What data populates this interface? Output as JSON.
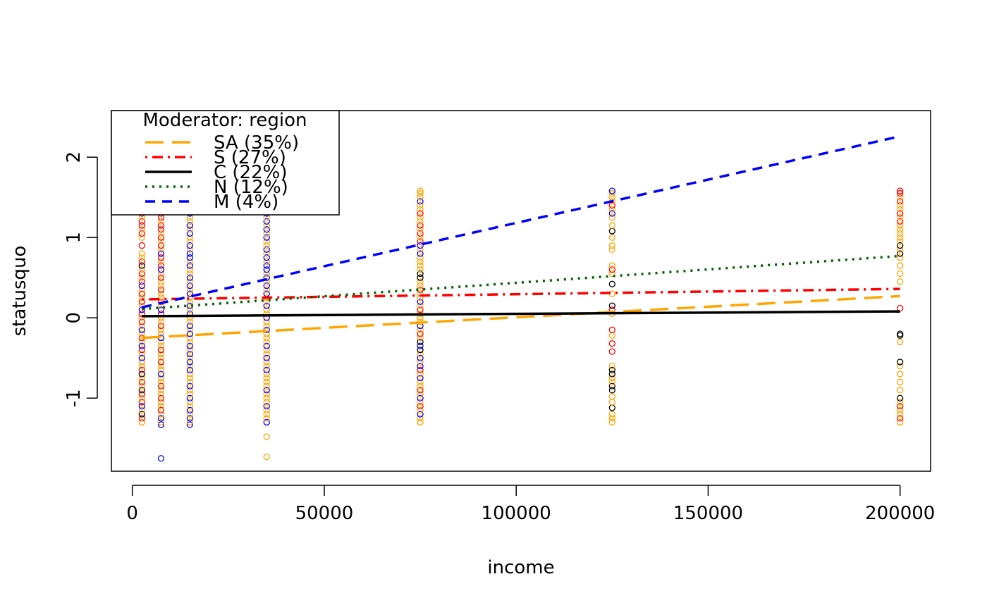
{
  "chart_data": {
    "type": "scatter",
    "xlabel": "income",
    "ylabel": "statusquo",
    "xlim": [
      -5450,
      207950
    ],
    "ylim": [
      -1.91,
      2.58
    ],
    "x_ticks": [
      0,
      50000,
      100000,
      150000,
      200000
    ],
    "x_tick_labels": [
      "0",
      "50000",
      "100000",
      "150000",
      "200000"
    ],
    "y_ticks": [
      -1,
      0,
      1,
      2
    ],
    "y_tick_labels": [
      "-1",
      "0",
      "1",
      "2"
    ],
    "grid": false,
    "legend": {
      "title": "Moderator: region",
      "position": "top-left"
    },
    "income_levels": [
      2500,
      7500,
      15000,
      35000,
      75000,
      125000,
      200000
    ],
    "series": [
      {
        "name": "SA (35%)",
        "color": "#FFA500",
        "dash": "longdash",
        "fit_x": [
          2500,
          200000
        ],
        "fit_y": [
          -0.25,
          0.27
        ]
      },
      {
        "name": "S (27%)",
        "color": "#FF0000",
        "dash": "dotdash",
        "fit_x": [
          2500,
          200000
        ],
        "fit_y": [
          0.23,
          0.36
        ]
      },
      {
        "name": "C (22%)",
        "color": "#000000",
        "dash": "solid",
        "fit_x": [
          2500,
          200000
        ],
        "fit_y": [
          0.02,
          0.08
        ]
      },
      {
        "name": "N (12%)",
        "color": "#006400",
        "dash": "dotted",
        "fit_x": [
          2500,
          200000
        ],
        "fit_y": [
          0.11,
          0.77
        ]
      },
      {
        "name": "M (4%)",
        "color": "#0000FF",
        "dash": "dashed",
        "fit_x": [
          2500,
          200000
        ],
        "fit_y": [
          0.13,
          2.26
        ]
      }
    ],
    "points": [
      {
        "x": 2500,
        "y": [
          -1.3,
          -1.25,
          -1.2,
          -1.15,
          -1.1,
          -1.05,
          -1.0,
          -0.95,
          -0.9,
          -0.85,
          -0.8,
          -0.75,
          -0.7,
          -0.65,
          -0.6,
          -0.55,
          -0.5,
          -0.45,
          -0.4,
          -0.35,
          -0.3,
          -0.25,
          -0.2,
          -0.15,
          -0.1,
          -0.05,
          0.0,
          0.05,
          0.1,
          0.15,
          0.2,
          0.25,
          0.3,
          0.35,
          0.4,
          0.45,
          0.5,
          0.55,
          0.6,
          0.65,
          0.7,
          0.75,
          0.8,
          0.9,
          1.0,
          1.05,
          1.1,
          1.15,
          1.2,
          1.25,
          1.3,
          1.35,
          1.4,
          1.45,
          1.5,
          1.55,
          1.58
        ],
        "colors": [
          "#FFA500",
          "#FF0000",
          "#000000",
          "#FFA500",
          "#0000FF",
          "#FF0000",
          "#FFA500",
          "#FF0000",
          "#000000",
          "#FFA500",
          "#FF0000",
          "#FFA500",
          "#000000",
          "#FF0000",
          "#FFA500",
          "#FFA500",
          "#0000FF",
          "#FFA500",
          "#FF0000",
          "#0000FF",
          "#FFA500",
          "#FF0000",
          "#FFA500",
          "#0000FF",
          "#FFA500",
          "#FF0000",
          "#FFA500",
          "#FF0000",
          "#0000FF",
          "#FFA500",
          "#FF0000",
          "#FFA500",
          "#FF0000",
          "#FFA500",
          "#0000FF",
          "#FF0000",
          "#FFA500",
          "#FF0000",
          "#FFA500",
          "#000000",
          "#FF0000",
          "#FFA500",
          "#FFA500",
          "#FF0000",
          "#FFA500",
          "#FF0000",
          "#FFA500",
          "#FF0000",
          "#FF0000",
          "#FFA500",
          "#FF0000",
          "#FFA500",
          "#FF0000",
          "#FFA500",
          "#FF0000",
          "#FFA500",
          "#FF0000"
        ]
      },
      {
        "x": 7500,
        "y": [
          -1.75,
          -1.33,
          -1.3,
          -1.25,
          -1.2,
          -1.15,
          -1.1,
          -1.05,
          -1.0,
          -0.95,
          -0.9,
          -0.85,
          -0.8,
          -0.75,
          -0.7,
          -0.65,
          -0.6,
          -0.55,
          -0.5,
          -0.45,
          -0.4,
          -0.35,
          -0.3,
          -0.25,
          -0.2,
          -0.15,
          -0.1,
          -0.05,
          0.0,
          0.05,
          0.1,
          0.15,
          0.2,
          0.25,
          0.3,
          0.35,
          0.4,
          0.45,
          0.5,
          0.55,
          0.6,
          0.65,
          0.7,
          0.75,
          0.8,
          0.85,
          0.9,
          0.95,
          1.0,
          1.05,
          1.1,
          1.15,
          1.2,
          1.25,
          1.3,
          1.35,
          1.4,
          1.45,
          1.5,
          1.55,
          1.58
        ],
        "colors": [
          "#0000FF",
          "#0000FF",
          "#FFA500",
          "#0000FF",
          "#FFA500",
          "#FF0000",
          "#FFA500",
          "#FFA500",
          "#FF0000",
          "#FFA500",
          "#FFA500",
          "#FF0000",
          "#FFA500",
          "#FFA500",
          "#0000FF",
          "#FFA500",
          "#FFA500",
          "#FF0000",
          "#FFA500",
          "#FFA500",
          "#FF0000",
          "#FFA500",
          "#FFA500",
          "#0000FF",
          "#FFA500",
          "#FFA500",
          "#FF0000",
          "#FFA500",
          "#FFA500",
          "#FF0000",
          "#0000FF",
          "#FFA500",
          "#FF0000",
          "#FFA500",
          "#FFA500",
          "#FF0000",
          "#FFA500",
          "#FFA500",
          "#FF0000",
          "#FFA500",
          "#0000FF",
          "#FF0000",
          "#FFA500",
          "#FF0000",
          "#0000FF",
          "#FFA500",
          "#FF0000",
          "#FFA500",
          "#FF0000",
          "#FFA500",
          "#FF0000",
          "#FF0000",
          "#FFA500",
          "#FF0000",
          "#FF0000",
          "#FFA500",
          "#FF0000",
          "#FFA500",
          "#FF0000",
          "#FFA500",
          "#FF0000"
        ]
      },
      {
        "x": 15000,
        "y": [
          -1.33,
          -1.3,
          -1.25,
          -1.2,
          -1.15,
          -1.1,
          -1.05,
          -1.0,
          -0.95,
          -0.9,
          -0.85,
          -0.8,
          -0.75,
          -0.7,
          -0.65,
          -0.6,
          -0.55,
          -0.5,
          -0.45,
          -0.4,
          -0.35,
          -0.3,
          -0.25,
          -0.2,
          -0.15,
          -0.1,
          -0.05,
          0.0,
          0.05,
          0.1,
          0.15,
          0.2,
          0.25,
          0.3,
          0.35,
          0.4,
          0.45,
          0.5,
          0.55,
          0.6,
          0.65,
          0.7,
          0.75,
          0.8,
          0.85,
          0.9,
          0.95,
          1.0,
          1.05,
          1.1,
          1.15,
          1.2,
          1.25,
          1.3,
          1.35,
          1.4,
          1.45,
          1.5,
          1.55,
          1.58
        ],
        "colors": [
          "#0000FF",
          "#FFA500",
          "#0000FF",
          "#FFA500",
          "#0000FF",
          "#FFA500",
          "#FFA500",
          "#0000FF",
          "#FFA500",
          "#FFA500",
          "#0000FF",
          "#FFA500",
          "#FFA500",
          "#FFA500",
          "#0000FF",
          "#FFA500",
          "#0000FF",
          "#FFA500",
          "#0000FF",
          "#FFA500",
          "#0000FF",
          "#FFA500",
          "#FFA500",
          "#0000FF",
          "#FFA500",
          "#0000FF",
          "#FFA500",
          "#FFA500",
          "#0000FF",
          "#FFA500",
          "#0000FF",
          "#FFA500",
          "#FFA500",
          "#0000FF",
          "#FFA500",
          "#0000FF",
          "#FFA500",
          "#0000FF",
          "#FFA500",
          "#FFA500",
          "#0000FF",
          "#FFA500",
          "#0000FF",
          "#0000FF",
          "#FFA500",
          "#0000FF",
          "#FFA500",
          "#FFA500",
          "#0000FF",
          "#FFA500",
          "#0000FF",
          "#FFA500",
          "#FFA500",
          "#0000FF",
          "#FFA500",
          "#FFA500",
          "#FFA500",
          "#FFA500",
          "#FFA500",
          "#FFA500"
        ]
      },
      {
        "x": 35000,
        "y": [
          -1.73,
          -1.48,
          -1.3,
          -1.25,
          -1.2,
          -1.15,
          -1.1,
          -1.05,
          -1.0,
          -0.95,
          -0.9,
          -0.85,
          -0.8,
          -0.75,
          -0.7,
          -0.65,
          -0.6,
          -0.55,
          -0.5,
          -0.45,
          -0.4,
          -0.35,
          -0.3,
          -0.25,
          -0.2,
          -0.15,
          -0.1,
          -0.05,
          0.0,
          0.05,
          0.1,
          0.15,
          0.2,
          0.25,
          0.3,
          0.35,
          0.4,
          0.45,
          0.5,
          0.55,
          0.6,
          0.65,
          0.7,
          0.75,
          0.8,
          0.85,
          0.9,
          0.95,
          1.0,
          1.05,
          1.1,
          1.15,
          1.2,
          1.25,
          1.3,
          1.35,
          1.4,
          1.45,
          1.5,
          1.55,
          1.58
        ],
        "colors": [
          "#FFA500",
          "#FFA500",
          "#0000FF",
          "#FFA500",
          "#FFA500",
          "#FFA500",
          "#0000FF",
          "#FFA500",
          "#FFA500",
          "#FFA500",
          "#0000FF",
          "#FFA500",
          "#FFA500",
          "#FFA500",
          "#FFA500",
          "#0000FF",
          "#FFA500",
          "#FFA500",
          "#0000FF",
          "#FFA500",
          "#FFA500",
          "#0000FF",
          "#FFA500",
          "#FFA500",
          "#FFA500",
          "#0000FF",
          "#FFA500",
          "#FFA500",
          "#0000FF",
          "#FFA500",
          "#FFA500",
          "#0000FF",
          "#FFA500",
          "#FFA500",
          "#0000FF",
          "#FFA500",
          "#0000FF",
          "#FFA500",
          "#0000FF",
          "#FFA500",
          "#0000FF",
          "#0000FF",
          "#FFA500",
          "#0000FF",
          "#FFA500",
          "#0000FF",
          "#FFA500",
          "#FFA500",
          "#0000FF",
          "#FFA500",
          "#0000FF",
          "#FFA500",
          "#0000FF",
          "#FFA500",
          "#0000FF",
          "#FFA500",
          "#FFA500",
          "#FFA500",
          "#FFA500",
          "#FFA500",
          "#FFA500"
        ]
      },
      {
        "x": 75000,
        "y": [
          -1.3,
          -1.25,
          -1.2,
          -1.15,
          -1.1,
          -1.05,
          -1.0,
          -0.95,
          -0.9,
          -0.85,
          -0.8,
          -0.75,
          -0.7,
          -0.65,
          -0.6,
          -0.55,
          -0.5,
          -0.45,
          -0.4,
          -0.35,
          -0.3,
          -0.25,
          -0.2,
          -0.15,
          -0.1,
          -0.05,
          0.0,
          0.05,
          0.1,
          0.15,
          0.2,
          0.25,
          0.3,
          0.35,
          0.4,
          0.45,
          0.5,
          0.55,
          0.6,
          0.65,
          0.7,
          0.75,
          0.8,
          0.85,
          0.9,
          0.95,
          1.0,
          1.05,
          1.1,
          1.15,
          1.2,
          1.25,
          1.3,
          1.35,
          1.4,
          1.45,
          1.5,
          1.55,
          1.58
        ],
        "colors": [
          "#FFA500",
          "#FFA500",
          "#0000FF",
          "#FFA500",
          "#FF0000",
          "#FFA500",
          "#0000FF",
          "#FFA500",
          "#FF0000",
          "#FFA500",
          "#FFA500",
          "#0000FF",
          "#FFA500",
          "#FF0000",
          "#0000FF",
          "#FFA500",
          "#0000FF",
          "#FFA500",
          "#000000",
          "#0000FF",
          "#000000",
          "#FFA500",
          "#FF0000",
          "#FFA500",
          "#0000FF",
          "#FFA500",
          "#FFA500",
          "#FFA500",
          "#FF0000",
          "#FFA500",
          "#0000FF",
          "#FFA500",
          "#FFA500",
          "#FF0000",
          "#FFA500",
          "#FFA500",
          "#000000",
          "#000000",
          "#FFA500",
          "#FFA500",
          "#FFA500",
          "#FFA500",
          "#0000FF",
          "#FFA500",
          "#0000FF",
          "#FF0000",
          "#FFA500",
          "#FF0000",
          "#FFA500",
          "#FF0000",
          "#FFA500",
          "#FFA500",
          "#FF0000",
          "#FFA500",
          "#FFA500",
          "#0000FF",
          "#FFA500",
          "#FFA500",
          "#FFA500"
        ]
      },
      {
        "x": 125000,
        "y": [
          -1.3,
          -1.25,
          -1.2,
          -1.12,
          -1.05,
          -0.98,
          -0.9,
          -0.85,
          -0.8,
          -0.75,
          -0.7,
          -0.65,
          -0.6,
          -0.42,
          -0.32,
          -0.22,
          -0.15,
          0.05,
          0.1,
          0.15,
          0.3,
          0.42,
          0.55,
          0.6,
          0.65,
          0.85,
          0.9,
          1.0,
          1.08,
          1.15,
          1.25,
          1.3,
          1.35,
          1.4,
          1.45,
          1.5,
          1.55,
          1.58
        ],
        "colors": [
          "#FFA500",
          "#FFA500",
          "#FFA500",
          "#000000",
          "#FFA500",
          "#FFA500",
          "#000000",
          "#000000",
          "#FFA500",
          "#FFA500",
          "#000000",
          "#000000",
          "#FFA500",
          "#FF0000",
          "#FF0000",
          "#FFA500",
          "#FF0000",
          "#FFA500",
          "#FF0000",
          "#000000",
          "#FFA500",
          "#000000",
          "#FFA500",
          "#FF0000",
          "#FFA500",
          "#FFA500",
          "#FFA500",
          "#FFA500",
          "#000000",
          "#FFA500",
          "#FFA500",
          "#0000FF",
          "#FFA500",
          "#FF0000",
          "#FFA500",
          "#FFA500",
          "#FFA500",
          "#0000FF"
        ]
      },
      {
        "x": 200000,
        "y": [
          -1.3,
          -1.25,
          -1.2,
          -1.15,
          -1.1,
          -1.05,
          -1.0,
          -0.9,
          -0.8,
          -0.7,
          -0.6,
          -0.55,
          -0.3,
          -0.22,
          -0.2,
          0.12,
          0.45,
          0.55,
          0.65,
          0.75,
          0.8,
          0.85,
          0.9,
          0.95,
          1.0,
          1.05,
          1.1,
          1.15,
          1.2,
          1.25,
          1.3,
          1.35,
          1.4,
          1.45,
          1.5,
          1.55,
          1.58
        ],
        "colors": [
          "#FFA500",
          "#FF0000",
          "#FFA500",
          "#FFA500",
          "#FF0000",
          "#FFA500",
          "#000000",
          "#FFA500",
          "#FFA500",
          "#FFA500",
          "#FFA500",
          "#000000",
          "#FFA500",
          "#000000",
          "#000000",
          "#FF0000",
          "#FFA500",
          "#FFA500",
          "#FFA500",
          "#FFA500",
          "#000000",
          "#FFA500",
          "#000000",
          "#FFA500",
          "#FFA500",
          "#FFA500",
          "#FFA500",
          "#FFA500",
          "#FF0000",
          "#FFA500",
          "#FF0000",
          "#FFA500",
          "#FFA500",
          "#FF0000",
          "#FFA500",
          "#FF0000",
          "#FF0000"
        ]
      }
    ]
  }
}
